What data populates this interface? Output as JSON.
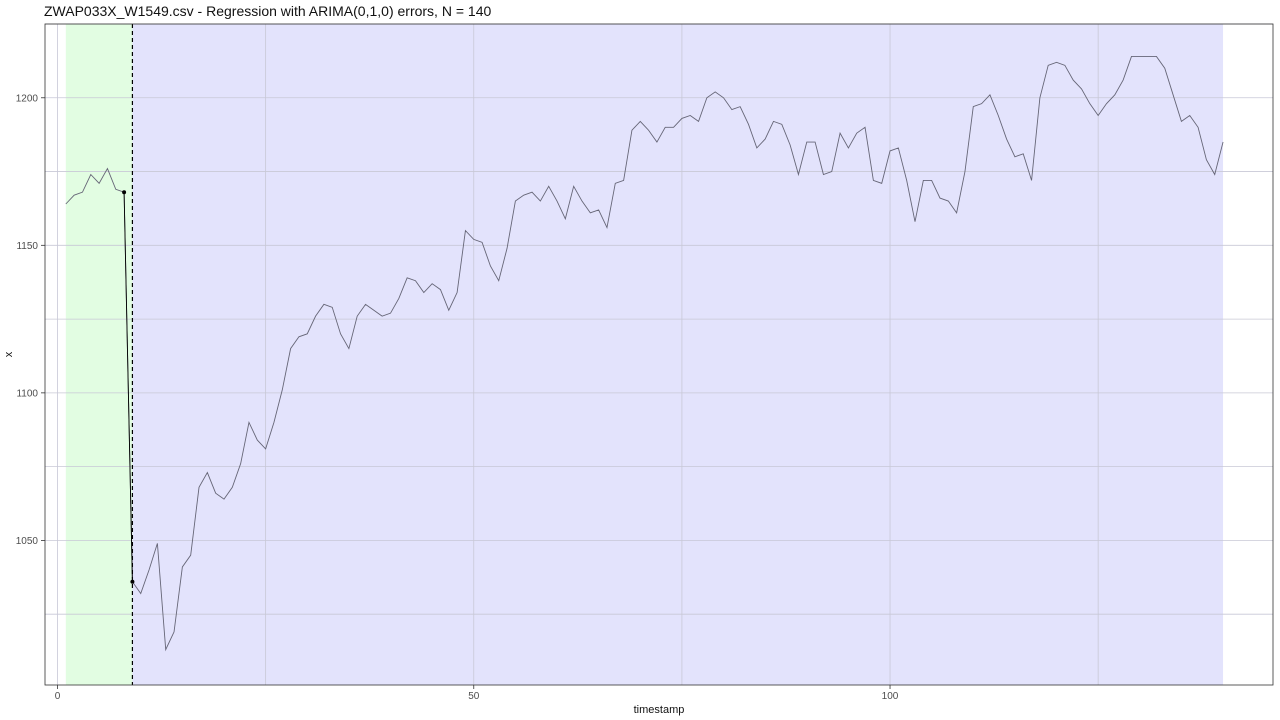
{
  "chart_data": {
    "type": "line",
    "title": "ZWAP033X_W1549.csv - Regression with ARIMA(0,1,0) errors, N = 140",
    "xlabel": "timestamp",
    "ylabel": "x",
    "xlim": [
      -1.5,
      146
    ],
    "ylim": [
      1001,
      1225
    ],
    "x_ticks": [
      0,
      50,
      100
    ],
    "y_ticks": [
      1050,
      1100,
      1150,
      1200
    ],
    "grid": true,
    "regions": [
      {
        "from": 1,
        "to": 9,
        "color": "#e2fde2"
      },
      {
        "from": 9,
        "to": 140,
        "color": "#e3e3fc"
      }
    ],
    "changepoint_x": 9,
    "segment_means": [
      {
        "x": [
          1,
          8
        ],
        "y": [
          1168,
          1168
        ]
      },
      {
        "x": [
          9,
          9
        ],
        "y": [
          1036,
          1036
        ]
      }
    ],
    "series": [
      {
        "color": "#666677",
        "x": [
          1,
          2,
          3,
          4,
          5,
          6,
          7,
          8,
          9,
          10,
          11,
          12,
          13,
          14,
          15,
          16,
          17,
          18,
          19,
          20,
          21,
          22,
          23,
          24,
          25,
          26,
          27,
          28,
          29,
          30,
          31,
          32,
          33,
          34,
          35,
          36,
          37,
          38,
          39,
          40,
          41,
          42,
          43,
          44,
          45,
          46,
          47,
          48,
          49,
          50,
          51,
          52,
          53,
          54,
          55,
          56,
          57,
          58,
          59,
          60,
          61,
          62,
          63,
          64,
          65,
          66,
          67,
          68,
          69,
          70,
          71,
          72,
          73,
          74,
          75,
          76,
          77,
          78,
          79,
          80,
          81,
          82,
          83,
          84,
          85,
          86,
          87,
          88,
          89,
          90,
          91,
          92,
          93,
          94,
          95,
          96,
          97,
          98,
          99,
          100,
          101,
          102,
          103,
          104,
          105,
          106,
          107,
          108,
          109,
          110,
          111,
          112,
          113,
          114,
          115,
          116,
          117,
          118,
          119,
          120,
          121,
          122,
          123,
          124,
          125,
          126,
          127,
          128,
          129,
          130,
          131,
          132,
          133,
          134,
          135,
          136,
          137,
          138,
          139,
          140
        ],
        "values": [
          1164,
          1167,
          1168,
          1174,
          1171,
          1176,
          1169,
          1168,
          1036,
          1032,
          1040,
          1049,
          1013,
          1019,
          1041,
          1045,
          1068,
          1073,
          1066,
          1064,
          1068,
          1076,
          1090,
          1084,
          1081,
          1090,
          1101,
          1115,
          1119,
          1120,
          1126,
          1130,
          1129,
          1120,
          1115,
          1126,
          1130,
          1128,
          1126,
          1127,
          1132,
          1139,
          1138,
          1134,
          1137,
          1135,
          1128,
          1134,
          1155,
          1152,
          1151,
          1143,
          1138,
          1149,
          1165,
          1167,
          1168,
          1165,
          1170,
          1165,
          1159,
          1170,
          1165,
          1161,
          1162,
          1156,
          1171,
          1172,
          1189,
          1192,
          1189,
          1185,
          1190,
          1190,
          1193,
          1194,
          1192,
          1200,
          1202,
          1200,
          1196,
          1197,
          1191,
          1183,
          1186,
          1192,
          1191,
          1184,
          1174,
          1185,
          1185,
          1174,
          1175,
          1188,
          1183,
          1188,
          1190,
          1172,
          1171,
          1182,
          1183,
          1172,
          1158,
          1172,
          1172,
          1166,
          1165,
          1161,
          1175,
          1197,
          1198,
          1201,
          1194,
          1186,
          1180,
          1181,
          1172,
          1200,
          1211,
          1212,
          1211,
          1206,
          1203,
          1198,
          1194,
          1198,
          1201,
          1206,
          1214,
          1214,
          1214,
          1214,
          1210,
          1201,
          1192,
          1194,
          1190,
          1179,
          1174,
          1185
        ]
      }
    ]
  }
}
